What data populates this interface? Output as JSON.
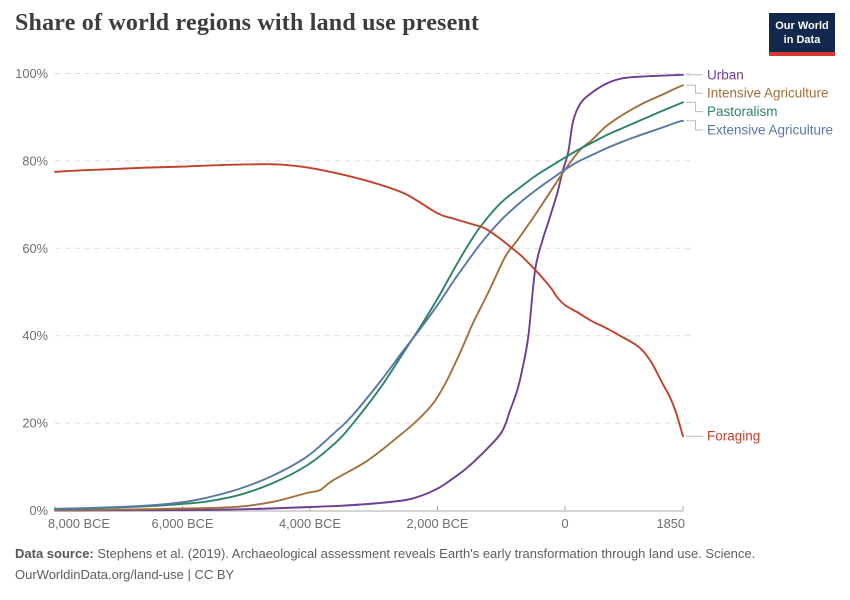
{
  "header": {
    "title": "Share of world regions with land use present",
    "logo_line1": "Our World",
    "logo_line2": "in Data"
  },
  "footer": {
    "source_label": "Data source:",
    "source_text": " Stephens et al. (2019). Archaeological assessment reveals Earth's early transformation through land use. Science.",
    "link_text": "OurWorldinData.org/land-use",
    "license_suffix": " | CC BY"
  },
  "chart_data": {
    "type": "line",
    "title": "Share of world regions with land use present",
    "xlabel": "",
    "ylabel": "",
    "xlim": [
      -8000,
      1850
    ],
    "ylim": [
      0,
      100
    ],
    "grid": true,
    "legend_position": "right",
    "colors": {
      "urban": "#6D3E91",
      "intensive_agriculture": "#A1703B",
      "pastoralism": "#2C8465",
      "extensive_agriculture": "#5878A5",
      "foraging": "#C1422A",
      "gridline": "#dadada",
      "axis": "#a8a8a8",
      "tick_text": "#6e6e6e"
    },
    "x_ticks": [
      {
        "value": -8000,
        "label": "8,000 BCE"
      },
      {
        "value": -6000,
        "label": "6,000 BCE"
      },
      {
        "value": -4000,
        "label": "4,000 BCE"
      },
      {
        "value": -2000,
        "label": "2,000 BCE"
      },
      {
        "value": 0,
        "label": "0"
      },
      {
        "value": 1850,
        "label": "1850"
      }
    ],
    "y_ticks": [
      {
        "value": 0,
        "label": "0%"
      },
      {
        "value": 20,
        "label": "20%"
      },
      {
        "value": 40,
        "label": "40%"
      },
      {
        "value": 60,
        "label": "60%"
      },
      {
        "value": 80,
        "label": "80%"
      },
      {
        "value": 100,
        "label": "100%"
      }
    ],
    "series": [
      {
        "name": "Urban",
        "color": "#6D3E91",
        "end_value_pct": 100,
        "points": [
          [
            -8000,
            0
          ],
          [
            -7000,
            0.05
          ],
          [
            -6000,
            0.1
          ],
          [
            -5000,
            0.3
          ],
          [
            -4000,
            0.8
          ],
          [
            -3500,
            1.1
          ],
          [
            -3000,
            1.6
          ],
          [
            -2500,
            2.4
          ],
          [
            -2250,
            3.4
          ],
          [
            -2000,
            5
          ],
          [
            -1800,
            6.9
          ],
          [
            -1550,
            9.6
          ],
          [
            -1300,
            13
          ],
          [
            -1000,
            17.8
          ],
          [
            -860,
            23
          ],
          [
            -750,
            27.5
          ],
          [
            -675,
            32
          ],
          [
            -575,
            40
          ],
          [
            -470,
            55
          ],
          [
            -350,
            62
          ],
          [
            -240,
            67
          ],
          [
            -125,
            72.5
          ],
          [
            -30,
            78
          ],
          [
            50,
            82
          ],
          [
            125,
            89
          ],
          [
            235,
            93
          ],
          [
            400,
            95.4
          ],
          [
            650,
            97.7
          ],
          [
            900,
            98.9
          ],
          [
            1200,
            99.3
          ],
          [
            1500,
            99.5
          ],
          [
            1850,
            99.7
          ]
        ]
      },
      {
        "name": "Intensive Agriculture",
        "color": "#A1703B",
        "end_value_pct": 97.3,
        "points": [
          [
            -8000,
            0.1
          ],
          [
            -7000,
            0.2
          ],
          [
            -6000,
            0.45
          ],
          [
            -5600,
            0.55
          ],
          [
            -5100,
            0.9
          ],
          [
            -4580,
            2
          ],
          [
            -4050,
            4
          ],
          [
            -3840,
            4.7
          ],
          [
            -3640,
            6.9
          ],
          [
            -3100,
            11.4
          ],
          [
            -2590,
            17.2
          ],
          [
            -2320,
            20.6
          ],
          [
            -2070,
            24.5
          ],
          [
            -1880,
            29
          ],
          [
            -1650,
            36
          ],
          [
            -1440,
            43
          ],
          [
            -1200,
            50
          ],
          [
            -940,
            58
          ],
          [
            -740,
            62
          ],
          [
            -500,
            67
          ],
          [
            -250,
            72.5
          ],
          [
            0,
            78
          ],
          [
            235,
            82.5
          ],
          [
            400,
            84.5
          ],
          [
            650,
            88
          ],
          [
            900,
            90.5
          ],
          [
            1200,
            93
          ],
          [
            1500,
            95
          ],
          [
            1750,
            96.7
          ],
          [
            1850,
            97.3
          ]
        ]
      },
      {
        "name": "Pastoralism",
        "color": "#2C8465",
        "end_value_pct": 93.4,
        "points": [
          [
            -8000,
            0.3
          ],
          [
            -7500,
            0.45
          ],
          [
            -7000,
            0.7
          ],
          [
            -6500,
            1
          ],
          [
            -6000,
            1.5
          ],
          [
            -5600,
            2.1
          ],
          [
            -5100,
            3.6
          ],
          [
            -4580,
            6.3
          ],
          [
            -4050,
            10.3
          ],
          [
            -3600,
            15.5
          ],
          [
            -3350,
            19.5
          ],
          [
            -2900,
            28
          ],
          [
            -2540,
            36
          ],
          [
            -2250,
            42.5
          ],
          [
            -2000,
            48.5
          ],
          [
            -1750,
            55
          ],
          [
            -1530,
            60.5
          ],
          [
            -1300,
            65.5
          ],
          [
            -1000,
            70.5
          ],
          [
            -700,
            74
          ],
          [
            -440,
            76.8
          ],
          [
            -200,
            79
          ],
          [
            0,
            80.8
          ],
          [
            200,
            82.5
          ],
          [
            400,
            84
          ],
          [
            650,
            85.9
          ],
          [
            900,
            87.5
          ],
          [
            1200,
            89.4
          ],
          [
            1500,
            91.3
          ],
          [
            1850,
            93.4
          ]
        ]
      },
      {
        "name": "Extensive Agriculture",
        "color": "#5878A5",
        "end_value_pct": 89.2,
        "points": [
          [
            -8000,
            0.4
          ],
          [
            -7500,
            0.55
          ],
          [
            -7000,
            0.8
          ],
          [
            -6500,
            1.2
          ],
          [
            -6000,
            1.9
          ],
          [
            -5600,
            3
          ],
          [
            -5100,
            5
          ],
          [
            -4580,
            8
          ],
          [
            -4050,
            12.3
          ],
          [
            -3600,
            18
          ],
          [
            -3350,
            21.5
          ],
          [
            -2900,
            29.5
          ],
          [
            -2540,
            36.5
          ],
          [
            -2250,
            42
          ],
          [
            -2000,
            47
          ],
          [
            -1750,
            52.5
          ],
          [
            -1530,
            57
          ],
          [
            -1300,
            61.5
          ],
          [
            -1000,
            66.5
          ],
          [
            -700,
            70.5
          ],
          [
            -440,
            73.5
          ],
          [
            -200,
            76
          ],
          [
            0,
            78
          ],
          [
            200,
            79.8
          ],
          [
            400,
            81.2
          ],
          [
            650,
            82.9
          ],
          [
            900,
            84.4
          ],
          [
            1200,
            86
          ],
          [
            1500,
            87.5
          ],
          [
            1750,
            88.8
          ],
          [
            1850,
            89.2
          ]
        ]
      },
      {
        "name": "Foraging",
        "color": "#C1422A",
        "end_value_pct": 17,
        "points": [
          [
            -8000,
            77.5
          ],
          [
            -7500,
            77.9
          ],
          [
            -7000,
            78.2
          ],
          [
            -6500,
            78.5
          ],
          [
            -6000,
            78.7
          ],
          [
            -5500,
            79
          ],
          [
            -5000,
            79.2
          ],
          [
            -4500,
            79.2
          ],
          [
            -4000,
            78.4
          ],
          [
            -3500,
            76.9
          ],
          [
            -3000,
            75
          ],
          [
            -2500,
            72.4
          ],
          [
            -2000,
            68
          ],
          [
            -1750,
            66.8
          ],
          [
            -1500,
            65.7
          ],
          [
            -1250,
            64.5
          ],
          [
            -1000,
            62
          ],
          [
            -830,
            60
          ],
          [
            -700,
            58.5
          ],
          [
            -550,
            56.3
          ],
          [
            -420,
            54.3
          ],
          [
            -300,
            52.3
          ],
          [
            -200,
            50.5
          ],
          [
            -125,
            48.8
          ],
          [
            0,
            47
          ],
          [
            200,
            45.3
          ],
          [
            400,
            43.5
          ],
          [
            650,
            41.7
          ],
          [
            900,
            39.7
          ],
          [
            1100,
            38
          ],
          [
            1223,
            36.5
          ],
          [
            1350,
            34
          ],
          [
            1450,
            31.3
          ],
          [
            1550,
            28.5
          ],
          [
            1650,
            25.8
          ],
          [
            1750,
            22
          ],
          [
            1850,
            17
          ]
        ]
      }
    ]
  }
}
